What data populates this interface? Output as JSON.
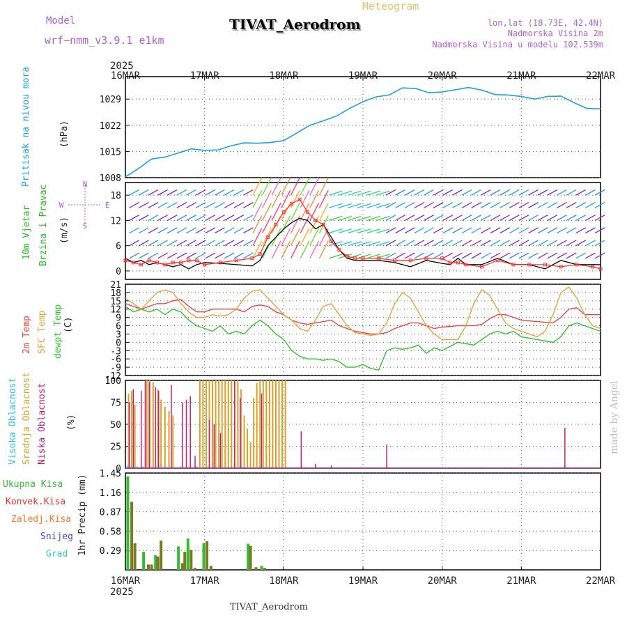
{
  "header": {
    "model_label": "Model",
    "model_name": "wrf−nmm_v3.9.1  e1km",
    "product": "Meteogram",
    "station": "TIVAT_Aerodrom",
    "lonlat": "lon,lat (18.73E, 42.4N)",
    "elevation": "Nadmorska Visina 2m",
    "model_elevation": "Nadmorska Visina u modelu 102.539m",
    "footer_station": "TIVAT_Aerodrom",
    "credit": "made by Angel"
  },
  "time_axis": {
    "year": "2025",
    "ticks": [
      "16MAR",
      "17MAR",
      "18MAR",
      "19MAR",
      "20MAR",
      "21MAR",
      "22MAR"
    ],
    "x_range_days": [
      0,
      6
    ]
  },
  "colors": {
    "pressure": "#1ea0e6",
    "wind_label": "#22bb22",
    "wind_speed": "#111111",
    "wind_gust": "#ff3333",
    "temp_2m": "#ee4444",
    "temp_sfc": "#e6a33c",
    "dewpoint": "#2ec42e",
    "cloud_high": "#33bbee",
    "cloud_mid": "#d9a02a",
    "cloud_low": "#c0207a",
    "precip_total": "#33bb33",
    "precip_conv": "#ee3333",
    "precip_frozen": "#ff7722",
    "snow": "#4444dd",
    "hail": "#33cccc",
    "precip_bar": "#7a7a22"
  },
  "chart_data": [
    {
      "type": "line",
      "id": "pressure",
      "ylabel": "Pritisak na nivou mora",
      "unit": "(hPa)",
      "yticks": [
        1008,
        1015,
        1022,
        1029
      ],
      "ylim": [
        1008,
        1035
      ],
      "series": [
        {
          "x": [
            0,
            0.17,
            0.33,
            0.5,
            0.67,
            0.83,
            1.0,
            1.17,
            1.33,
            1.5,
            1.67,
            1.83,
            2.0,
            2.17,
            2.33,
            2.5,
            2.67,
            2.83,
            3.0,
            3.17,
            3.33,
            3.5,
            3.67,
            3.83,
            4.0,
            4.17,
            4.33,
            4.5,
            4.67,
            4.83,
            5.0,
            5.17,
            5.33,
            5.5,
            5.67,
            5.83,
            6.0
          ],
          "y": [
            1008.2,
            1010.5,
            1013,
            1013.5,
            1014.6,
            1015.7,
            1015.3,
            1015.4,
            1016.5,
            1017.3,
            1017.2,
            1017.4,
            1017.9,
            1020,
            1022,
            1023.2,
            1024.5,
            1026.5,
            1028.3,
            1029.6,
            1030.1,
            1032.0,
            1031.8,
            1030.7,
            1030.9,
            1031.5,
            1032.1,
            1031.4,
            1030.2,
            1030.1,
            1029.7,
            1029.0,
            1029.7,
            1029.8,
            1028.0,
            1026.5,
            1026.4
          ]
        }
      ]
    },
    {
      "type": "line",
      "id": "wind",
      "ylabel": "10m Vjetar",
      "ylabel2": "Brzina i Pravac",
      "unit": "(m/s)",
      "compass": [
        "N",
        "S",
        "W",
        "E"
      ],
      "yticks": [
        0,
        6,
        12,
        18
      ],
      "ylim": [
        -2,
        21
      ],
      "series": [
        {
          "name": "speed",
          "x": [
            0,
            0.1,
            0.2,
            0.3,
            0.4,
            0.5,
            0.6,
            0.7,
            0.8,
            0.9,
            1.0,
            1.2,
            1.4,
            1.6,
            1.7,
            1.8,
            1.9,
            2.0,
            2.1,
            2.2,
            2.3,
            2.4,
            2.5,
            2.6,
            2.7,
            2.8,
            2.9,
            3.0,
            3.2,
            3.4,
            3.6,
            3.8,
            4.0,
            4.1,
            4.2,
            4.3,
            4.5,
            4.7,
            4.9,
            5.1,
            5.3,
            5.5,
            5.7,
            5.9,
            6.0
          ],
          "y": [
            3,
            2,
            2.5,
            1.5,
            2,
            1.5,
            1,
            1.5,
            0.5,
            1.5,
            2,
            1.8,
            1.5,
            1.2,
            2.5,
            6,
            8,
            10,
            11.5,
            12.5,
            12,
            10,
            11,
            8,
            5,
            3,
            2.5,
            2.5,
            2.5,
            2,
            1,
            2.5,
            1.8,
            1.5,
            3,
            1.5,
            1.5,
            3,
            1.5,
            1.5,
            0.5,
            2.5,
            1.5,
            1.5,
            1.5
          ]
        },
        {
          "name": "gust",
          "x": [
            0,
            0.1,
            0.2,
            0.3,
            0.4,
            0.5,
            0.6,
            0.7,
            0.8,
            0.9,
            1.0,
            1.2,
            1.4,
            1.6,
            1.7,
            1.8,
            1.9,
            2.0,
            2.1,
            2.2,
            2.3,
            2.4,
            2.5,
            2.6,
            2.7,
            2.8,
            2.9,
            3.0,
            3.2,
            3.4,
            3.6,
            3.8,
            4.0,
            4.1,
            4.2,
            4.3,
            4.5,
            4.7,
            4.9,
            5.1,
            5.3,
            5.5,
            5.7,
            5.9,
            6.0
          ],
          "y": [
            2.5,
            2,
            1.5,
            2.5,
            2,
            1.5,
            2,
            2,
            2.5,
            2.5,
            1.5,
            2,
            2.5,
            3,
            4,
            8,
            11,
            14,
            16,
            17,
            14,
            12,
            11,
            7,
            5,
            3.5,
            3,
            3,
            3,
            2.5,
            2.5,
            3,
            3,
            2,
            2,
            1.5,
            1,
            2.5,
            1.5,
            1.5,
            1.5,
            1,
            1.5,
            1,
            0.5
          ]
        }
      ]
    },
    {
      "type": "line",
      "id": "temperature",
      "ylabels": [
        "2m Temp",
        "SFC Temp",
        "dewpt Temp"
      ],
      "unit": "(C)",
      "yticks": [
        -12,
        -9,
        -6,
        -3,
        0,
        3,
        6,
        9,
        12,
        15,
        18,
        21
      ],
      "ylim": [
        -12,
        21
      ],
      "series": [
        {
          "name": "2m Temp",
          "x": [
            0,
            0.1,
            0.2,
            0.3,
            0.4,
            0.5,
            0.6,
            0.7,
            0.8,
            0.9,
            1.0,
            1.1,
            1.2,
            1.3,
            1.4,
            1.5,
            1.6,
            1.7,
            1.8,
            1.9,
            2.0,
            2.1,
            2.2,
            2.3,
            2.4,
            2.5,
            2.6,
            2.7,
            2.8,
            2.9,
            3.0,
            3.1,
            3.2,
            3.3,
            3.4,
            3.5,
            3.6,
            3.7,
            3.8,
            3.9,
            4.0,
            4.2,
            4.4,
            4.5,
            4.6,
            4.7,
            4.8,
            5.0,
            5.2,
            5.4,
            5.5,
            5.6,
            5.7,
            5.8,
            6.0
          ],
          "y": [
            14,
            13,
            12,
            13,
            14,
            14,
            15,
            15.5,
            13,
            11,
            11,
            12,
            12,
            12,
            12,
            11,
            13,
            13.5,
            13,
            11,
            10,
            8,
            7,
            6.5,
            7,
            7.5,
            8,
            6,
            5,
            4,
            3.5,
            3,
            3,
            3.5,
            5,
            6,
            7,
            7,
            6,
            5,
            5.5,
            6,
            6,
            6.5,
            8.5,
            10,
            10,
            8,
            7.5,
            7,
            9,
            12,
            12.5,
            10,
            10
          ]
        },
        {
          "name": "SFC Temp",
          "x": [
            0,
            0.1,
            0.2,
            0.3,
            0.4,
            0.5,
            0.6,
            0.7,
            0.8,
            0.9,
            1.0,
            1.1,
            1.2,
            1.3,
            1.4,
            1.5,
            1.6,
            1.7,
            1.8,
            1.9,
            2.0,
            2.1,
            2.2,
            2.3,
            2.4,
            2.5,
            2.6,
            2.7,
            2.8,
            2.9,
            3.0,
            3.1,
            3.2,
            3.3,
            3.4,
            3.5,
            3.6,
            3.7,
            3.8,
            3.9,
            4.0,
            4.1,
            4.2,
            4.3,
            4.4,
            4.5,
            4.6,
            4.7,
            4.8,
            4.9,
            5.0,
            5.1,
            5.2,
            5.3,
            5.4,
            5.5,
            5.6,
            5.7,
            5.8,
            5.9,
            6.0
          ],
          "y": [
            16,
            14,
            12,
            15,
            18,
            19,
            18,
            14,
            11,
            9,
            9,
            10,
            9.5,
            10,
            12,
            16,
            18.5,
            19,
            16,
            13,
            10,
            8,
            5,
            4,
            8,
            13,
            14,
            10,
            6,
            3.5,
            3,
            2.5,
            3,
            7,
            14,
            18,
            16,
            11,
            6,
            3,
            1,
            1,
            1,
            6,
            14,
            19,
            17,
            12,
            7,
            5,
            4,
            3,
            2,
            4,
            10,
            18,
            20,
            16,
            10,
            6,
            5
          ]
        },
        {
          "name": "dewpt Temp",
          "x": [
            0,
            0.1,
            0.2,
            0.3,
            0.4,
            0.5,
            0.6,
            0.7,
            0.8,
            0.9,
            1.0,
            1.1,
            1.2,
            1.3,
            1.4,
            1.5,
            1.6,
            1.7,
            1.8,
            1.9,
            2.0,
            2.1,
            2.2,
            2.3,
            2.4,
            2.5,
            2.6,
            2.7,
            2.8,
            2.9,
            3.0,
            3.1,
            3.2,
            3.3,
            3.4,
            3.5,
            3.6,
            3.7,
            3.8,
            3.9,
            4.0,
            4.2,
            4.4,
            4.5,
            4.6,
            4.7,
            4.8,
            4.9,
            5.0,
            5.2,
            5.4,
            5.5,
            5.6,
            5.7,
            5.8,
            6.0
          ],
          "y": [
            13,
            11,
            12,
            11,
            12,
            10,
            12,
            11,
            8,
            6,
            5,
            4,
            6,
            3,
            4,
            3,
            6,
            8,
            6,
            3,
            1,
            -3,
            -5,
            -6,
            -6,
            -6.5,
            -6,
            -7,
            -9,
            -9,
            -8,
            -9.5,
            -10,
            -3,
            -2,
            -2.5,
            -2,
            -1,
            -4,
            -2,
            -3,
            0,
            -1,
            1,
            3,
            4,
            3,
            4,
            2,
            1,
            0,
            2,
            6,
            7,
            6,
            4
          ]
        }
      ]
    },
    {
      "type": "bar",
      "id": "cloud",
      "ylabels": [
        "Visoka Oblacnost",
        "Srednja Oblacnost",
        "Niska Oblacnost"
      ],
      "unit": "(%)",
      "yticks": [
        0,
        25,
        50,
        75,
        100
      ],
      "ylim": [
        0,
        100
      ],
      "series": [
        {
          "name": "Srednja Oblacnost",
          "x": [
            0.04,
            0.08,
            0.12,
            0.27,
            0.31,
            0.35,
            0.41,
            0.45,
            0.5,
            0.55,
            0.6,
            0.94,
            0.98,
            1.02,
            1.06,
            1.1,
            1.14,
            1.18,
            1.22,
            1.26,
            1.3,
            1.34,
            1.38,
            1.42,
            1.46,
            1.5,
            1.54,
            1.58,
            1.62,
            1.66,
            1.7,
            1.74,
            1.78,
            1.82,
            1.86,
            1.9,
            1.94,
            1.98,
            2.02
          ],
          "values": [
            85,
            88,
            72,
            100,
            100,
            98,
            90,
            78,
            70,
            65,
            60,
            100,
            100,
            100,
            100,
            100,
            100,
            100,
            100,
            100,
            100,
            100,
            100,
            100,
            90,
            60,
            45,
            30,
            80,
            97,
            100,
            100,
            100,
            100,
            100,
            100,
            100,
            100,
            100
          ]
        },
        {
          "name": "Niska Oblacnost",
          "x": [
            0.05,
            0.1,
            0.2,
            0.25,
            0.3,
            0.38,
            0.42,
            0.58,
            0.72,
            0.77,
            0.82,
            0.88,
            1.06,
            1.12,
            1.2,
            1.38,
            1.45,
            1.72,
            2.22,
            2.4,
            2.6,
            3.3,
            5.55
          ],
          "values": [
            75,
            90,
            88,
            100,
            98,
            92,
            88,
            95,
            75,
            78,
            82,
            14,
            55,
            50,
            40,
            100,
            80,
            85,
            42,
            5,
            3,
            27,
            46
          ]
        },
        {
          "name": "Visoka Oblacnost",
          "x": [
            0.03,
            0.06,
            0.09,
            0.15,
            0.22,
            0.35,
            0.5,
            0.7,
            0.9,
            1.1,
            1.3,
            1.5,
            1.7
          ],
          "values": [
            3,
            2,
            2,
            2,
            2,
            2,
            2,
            2,
            2,
            2,
            2,
            2,
            2
          ]
        }
      ]
    },
    {
      "type": "bar",
      "id": "precip",
      "legend": [
        "Ukupna Kisa",
        "Konvek.Kisa",
        "Zaledj.Kisa",
        "Snijeg",
        "Grad"
      ],
      "ylabel": "1hr Precip (mm)",
      "yticks": [
        0.29,
        0.58,
        0.87,
        1.16,
        1.45
      ],
      "ylim": [
        0,
        1.45
      ],
      "series": [
        {
          "name": "Ukupna Kisa",
          "x": [
            0.03,
            0.08,
            0.12,
            0.23,
            0.29,
            0.33,
            0.38,
            0.41,
            0.45,
            0.67,
            0.72,
            0.75,
            0.79,
            0.83,
            0.88,
            0.99,
            1.03,
            1.08,
            1.55,
            1.58,
            1.65,
            1.72,
            1.76
          ],
          "values": [
            1.4,
            1.02,
            0.4,
            0.27,
            0.08,
            0.08,
            0.22,
            0.2,
            0.44,
            0.35,
            0.1,
            0.27,
            0.47,
            0.3,
            0.03,
            0.4,
            0.43,
            0.06,
            0.39,
            0.36,
            0.04,
            0.06,
            0.03
          ]
        }
      ]
    }
  ]
}
